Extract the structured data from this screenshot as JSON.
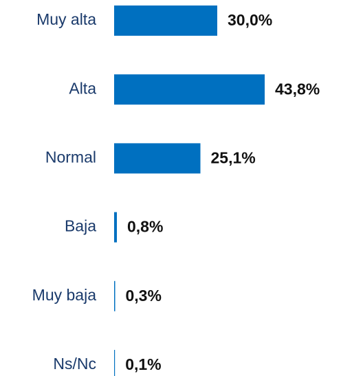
{
  "chart_data": {
    "type": "bar",
    "orientation": "horizontal",
    "categories": [
      "Muy alta",
      "Alta",
      "Normal",
      "Baja",
      "Muy baja",
      "Ns/Nc"
    ],
    "values": [
      30.0,
      43.8,
      25.1,
      0.8,
      0.3,
      0.1
    ],
    "value_labels": [
      "30,0%",
      "43,8%",
      "25,1%",
      "0,8%",
      "0,3%",
      "0,1%"
    ],
    "color": "#0070c0"
  }
}
